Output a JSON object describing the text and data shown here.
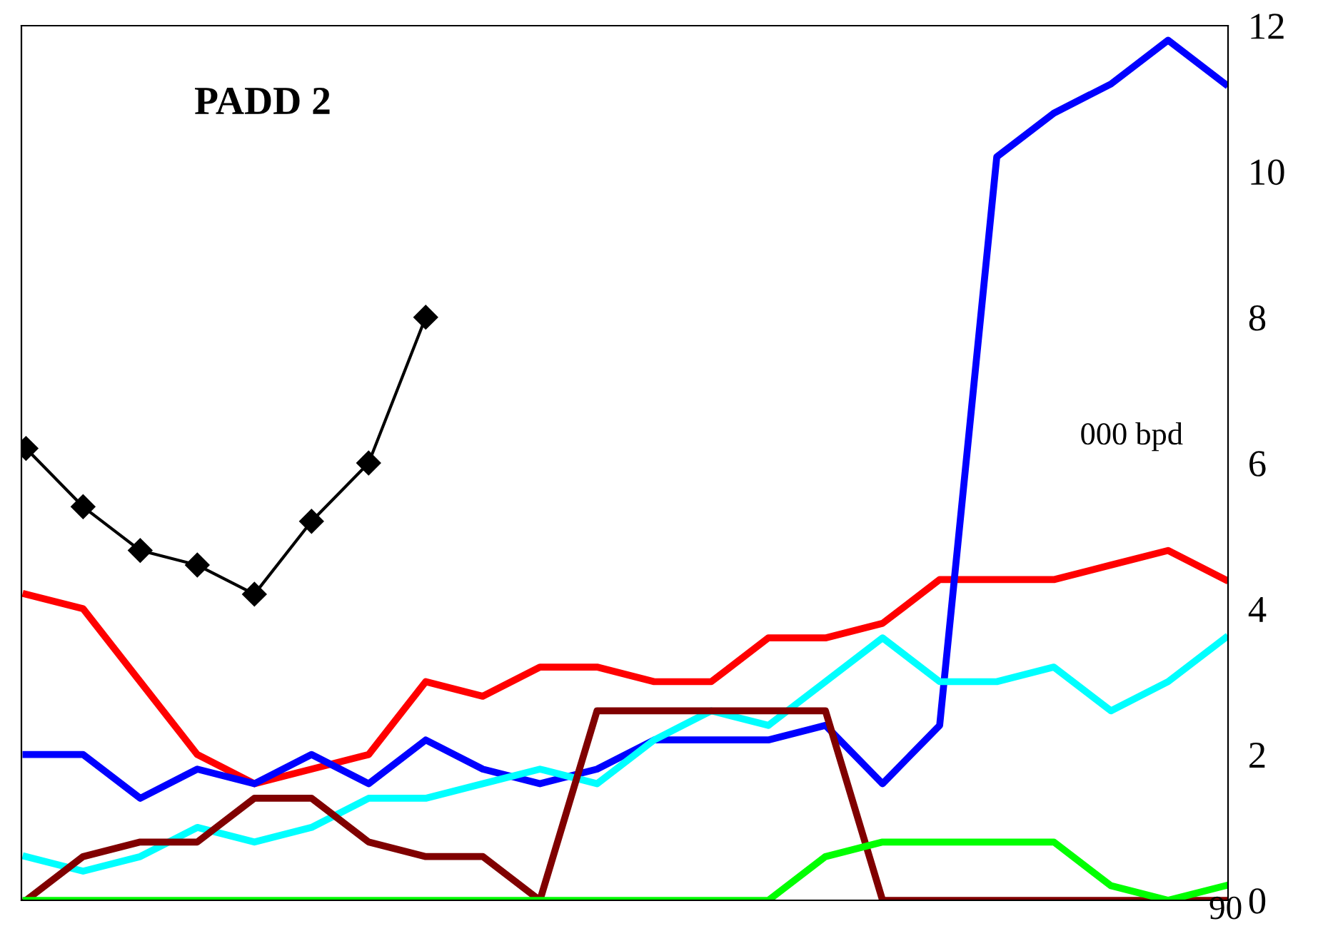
{
  "chart_data": {
    "type": "line",
    "title": "PADD 2",
    "annotations": [
      "000 bpd",
      "90"
    ],
    "categories": [
      null,
      null,
      null,
      null,
      null,
      null,
      null,
      null,
      null,
      null,
      null,
      null,
      null,
      null,
      null,
      null,
      null,
      null,
      null,
      null,
      null,
      null
    ],
    "series": [
      {
        "color": "#000000",
        "marker": "diamond",
        "values": [
          6.2,
          5.4,
          4.8,
          4.6,
          4.2,
          5.2,
          6.0,
          8.0,
          null,
          null,
          null,
          null,
          null,
          null,
          null,
          null,
          null,
          null,
          null,
          null,
          null,
          null
        ]
      },
      {
        "color": "#ff0000",
        "values": [
          4.2,
          4.0,
          3.0,
          2.0,
          1.6,
          1.8,
          2.0,
          3.0,
          2.8,
          3.2,
          3.2,
          3.0,
          3.0,
          3.6,
          3.6,
          3.8,
          4.4,
          4.4,
          4.4,
          4.6,
          4.8,
          4.4
        ]
      },
      {
        "color": "#0000ff",
        "values": [
          2.0,
          2.0,
          1.4,
          1.8,
          1.6,
          2.0,
          1.6,
          2.2,
          1.8,
          1.6,
          1.8,
          2.2,
          2.2,
          2.2,
          2.4,
          1.6,
          2.4,
          10.2,
          10.8,
          11.2,
          11.8,
          11.2
        ]
      },
      {
        "color": "#00ffff",
        "values": [
          0.6,
          0.4,
          0.6,
          1.0,
          0.8,
          1.0,
          1.4,
          1.4,
          1.6,
          1.8,
          1.6,
          2.2,
          2.6,
          2.4,
          3.0,
          3.6,
          3.0,
          3.0,
          3.2,
          2.6,
          3.0,
          3.6
        ]
      },
      {
        "color": "#800000",
        "values": [
          0,
          0.6,
          0.8,
          0.8,
          1.4,
          1.4,
          0.8,
          0.6,
          0.6,
          0,
          2.6,
          2.6,
          2.6,
          2.6,
          2.6,
          0,
          0,
          0,
          0,
          0,
          0,
          0
        ]
      },
      {
        "color": "#00ff00",
        "values": [
          0,
          0,
          0,
          0,
          0,
          0,
          0,
          0,
          0,
          0,
          0,
          0,
          0,
          0,
          0.6,
          0.8,
          0.8,
          0.8,
          0.8,
          0.2,
          0,
          0.2
        ]
      }
    ],
    "ylim": [
      0,
      12
    ],
    "yticks": [
      0,
      2,
      4,
      6,
      8,
      10,
      12
    ],
    "grid": false
  }
}
